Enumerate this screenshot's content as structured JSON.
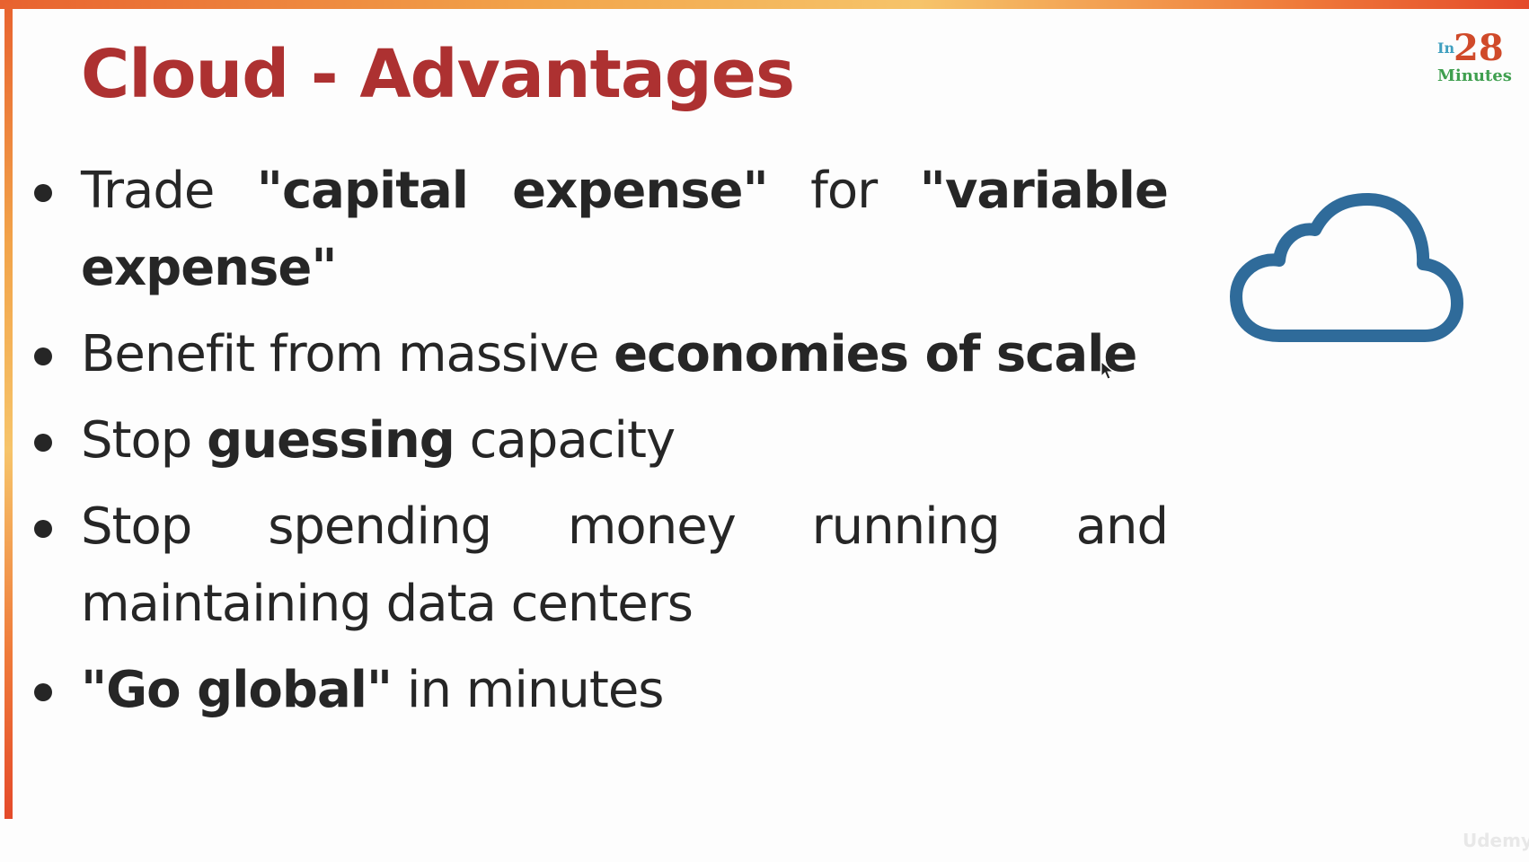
{
  "slide": {
    "title": "Cloud - Advantages",
    "logo": {
      "prefix": "In",
      "number": "28",
      "suffix": "Minutes"
    },
    "bullets": [
      {
        "segments": [
          {
            "text": "Trade ",
            "bold": false
          },
          {
            "text": "\"capital expense\"",
            "bold": true
          },
          {
            "text": " for ",
            "bold": false
          },
          {
            "text": "\"variable expense\"",
            "bold": true
          }
        ]
      },
      {
        "segments": [
          {
            "text": "Benefit from massive ",
            "bold": false
          },
          {
            "text": "economies of scale",
            "bold": true
          }
        ]
      },
      {
        "segments": [
          {
            "text": "Stop ",
            "bold": false
          },
          {
            "text": "guessing",
            "bold": true
          },
          {
            "text": " capacity",
            "bold": false
          }
        ]
      },
      {
        "segments": [
          {
            "text": "Stop spending money running and maintaining data centers",
            "bold": false
          }
        ]
      },
      {
        "segments": [
          {
            "text": "\"Go global\"",
            "bold": true
          },
          {
            "text": " in minutes",
            "bold": false
          }
        ]
      }
    ],
    "watermark": "Udemy",
    "icons": [
      "cloud-icon",
      "mouse-cursor-icon"
    ],
    "colors": {
      "title": "#ad3131",
      "cloud_stroke": "#2f6b9a",
      "body_text": "#262626",
      "accent_bar": "#f2a44a"
    }
  }
}
